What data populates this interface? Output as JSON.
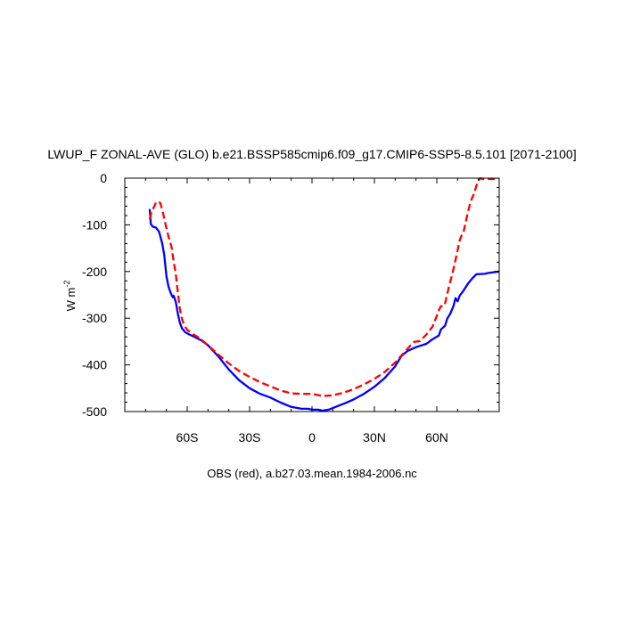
{
  "chart_data": {
    "type": "line",
    "title": "LWUP_F ZONAL-AVE (GLO) b.e21.BSSP585cmip6.f09_g17.CMIP6-SSP5-8.5.101 [2071-2100]",
    "caption": "OBS (red), a.b27.03.mean.1984-2006.nc",
    "ylabel": "W m",
    "ylabel_sup": "-2",
    "xlabel": "",
    "xlim": [
      -90,
      90
    ],
    "ylim": [
      -500,
      0
    ],
    "x_ticks": [
      {
        "value": -60,
        "label": "60S"
      },
      {
        "value": -30,
        "label": "30S"
      },
      {
        "value": 0,
        "label": "0"
      },
      {
        "value": 30,
        "label": "30N"
      },
      {
        "value": 60,
        "label": "60N"
      }
    ],
    "y_ticks": [
      {
        "value": 0,
        "label": "0"
      },
      {
        "value": -100,
        "label": "-100"
      },
      {
        "value": -200,
        "label": "-200"
      },
      {
        "value": -300,
        "label": "-300"
      },
      {
        "value": -400,
        "label": "-400"
      },
      {
        "value": -500,
        "label": "-500"
      }
    ],
    "grid": false,
    "series": [
      {
        "color": "#0000ff",
        "style": "solid",
        "points": [
          [
            -78,
            -68
          ],
          [
            -77.5,
            -98
          ],
          [
            -76.5,
            -104
          ],
          [
            -75,
            -106
          ],
          [
            -73.5,
            -115
          ],
          [
            -72,
            -140
          ],
          [
            -71,
            -165
          ],
          [
            -70,
            -210
          ],
          [
            -69,
            -232
          ],
          [
            -68,
            -245
          ],
          [
            -67,
            -255
          ],
          [
            -66.5,
            -252
          ],
          [
            -65.5,
            -265
          ],
          [
            -64.5,
            -290
          ],
          [
            -63.5,
            -310
          ],
          [
            -62.5,
            -322
          ],
          [
            -61,
            -330
          ],
          [
            -59,
            -335
          ],
          [
            -56,
            -341
          ],
          [
            -53,
            -348
          ],
          [
            -50,
            -358
          ],
          [
            -45,
            -382
          ],
          [
            -40,
            -410
          ],
          [
            -35,
            -433
          ],
          [
            -30,
            -450
          ],
          [
            -25,
            -462
          ],
          [
            -20,
            -470
          ],
          [
            -15,
            -481
          ],
          [
            -10,
            -490
          ],
          [
            -5,
            -494
          ],
          [
            -2,
            -494
          ],
          [
            0,
            -496
          ],
          [
            3,
            -496
          ],
          [
            5,
            -498
          ],
          [
            8,
            -496
          ],
          [
            12,
            -489
          ],
          [
            16,
            -482
          ],
          [
            20,
            -474
          ],
          [
            25,
            -462
          ],
          [
            30,
            -447
          ],
          [
            35,
            -428
          ],
          [
            40,
            -403
          ],
          [
            43,
            -381
          ],
          [
            46,
            -370
          ],
          [
            50,
            -362
          ],
          [
            55,
            -355
          ],
          [
            58,
            -345
          ],
          [
            61,
            -337
          ],
          [
            62,
            -324
          ],
          [
            63,
            -320
          ],
          [
            64,
            -316
          ],
          [
            65,
            -301
          ],
          [
            66.5,
            -290
          ],
          [
            68,
            -274
          ],
          [
            69,
            -257
          ],
          [
            70,
            -264
          ],
          [
            71,
            -252
          ],
          [
            73,
            -240
          ],
          [
            75,
            -226
          ],
          [
            77,
            -215
          ],
          [
            79,
            -206
          ],
          [
            83,
            -205
          ],
          [
            85,
            -203
          ],
          [
            90,
            -200
          ]
        ]
      },
      {
        "color": "#ff0000",
        "style": "dashed",
        "points": [
          [
            -78,
            -88
          ],
          [
            -77.5,
            -78
          ],
          [
            -77,
            -70
          ],
          [
            -76,
            -62
          ],
          [
            -75,
            -52
          ],
          [
            -74,
            -50
          ],
          [
            -73,
            -53
          ],
          [
            -72,
            -67
          ],
          [
            -71,
            -87
          ],
          [
            -70,
            -107
          ],
          [
            -69,
            -125
          ],
          [
            -67.5,
            -148
          ],
          [
            -66.5,
            -178
          ],
          [
            -65.5,
            -205
          ],
          [
            -64.5,
            -245
          ],
          [
            -63.5,
            -280
          ],
          [
            -62.5,
            -302
          ],
          [
            -61.5,
            -315
          ],
          [
            -60,
            -325
          ],
          [
            -57,
            -335
          ],
          [
            -54,
            -343
          ],
          [
            -50,
            -358
          ],
          [
            -45,
            -378
          ],
          [
            -40,
            -397
          ],
          [
            -35,
            -413
          ],
          [
            -30,
            -426
          ],
          [
            -25,
            -437
          ],
          [
            -20,
            -446
          ],
          [
            -15,
            -455
          ],
          [
            -10,
            -461
          ],
          [
            -5,
            -462
          ],
          [
            -2,
            -462
          ],
          [
            0,
            -462
          ],
          [
            2,
            -464
          ],
          [
            5,
            -467
          ],
          [
            10,
            -465
          ],
          [
            15,
            -460
          ],
          [
            20,
            -452
          ],
          [
            25,
            -442
          ],
          [
            30,
            -430
          ],
          [
            35,
            -415
          ],
          [
            40,
            -395
          ],
          [
            43,
            -380
          ],
          [
            45,
            -370
          ],
          [
            47,
            -360
          ],
          [
            49,
            -351
          ],
          [
            52,
            -349
          ],
          [
            55,
            -335
          ],
          [
            58,
            -318
          ],
          [
            60,
            -295
          ],
          [
            61,
            -283
          ],
          [
            62,
            -274
          ],
          [
            63,
            -275
          ],
          [
            64,
            -268
          ],
          [
            65,
            -248
          ],
          [
            66,
            -230
          ],
          [
            67.5,
            -205
          ],
          [
            69,
            -175
          ],
          [
            70,
            -155
          ],
          [
            71,
            -133
          ],
          [
            72,
            -122
          ],
          [
            73,
            -113
          ],
          [
            74,
            -92
          ],
          [
            75,
            -72
          ],
          [
            76,
            -55
          ],
          [
            77,
            -42
          ],
          [
            78,
            -32
          ],
          [
            79,
            -17
          ],
          [
            80,
            -5
          ],
          [
            81,
            0
          ],
          [
            82,
            -2
          ],
          [
            86,
            -2
          ],
          [
            90,
            -2
          ]
        ]
      }
    ]
  }
}
